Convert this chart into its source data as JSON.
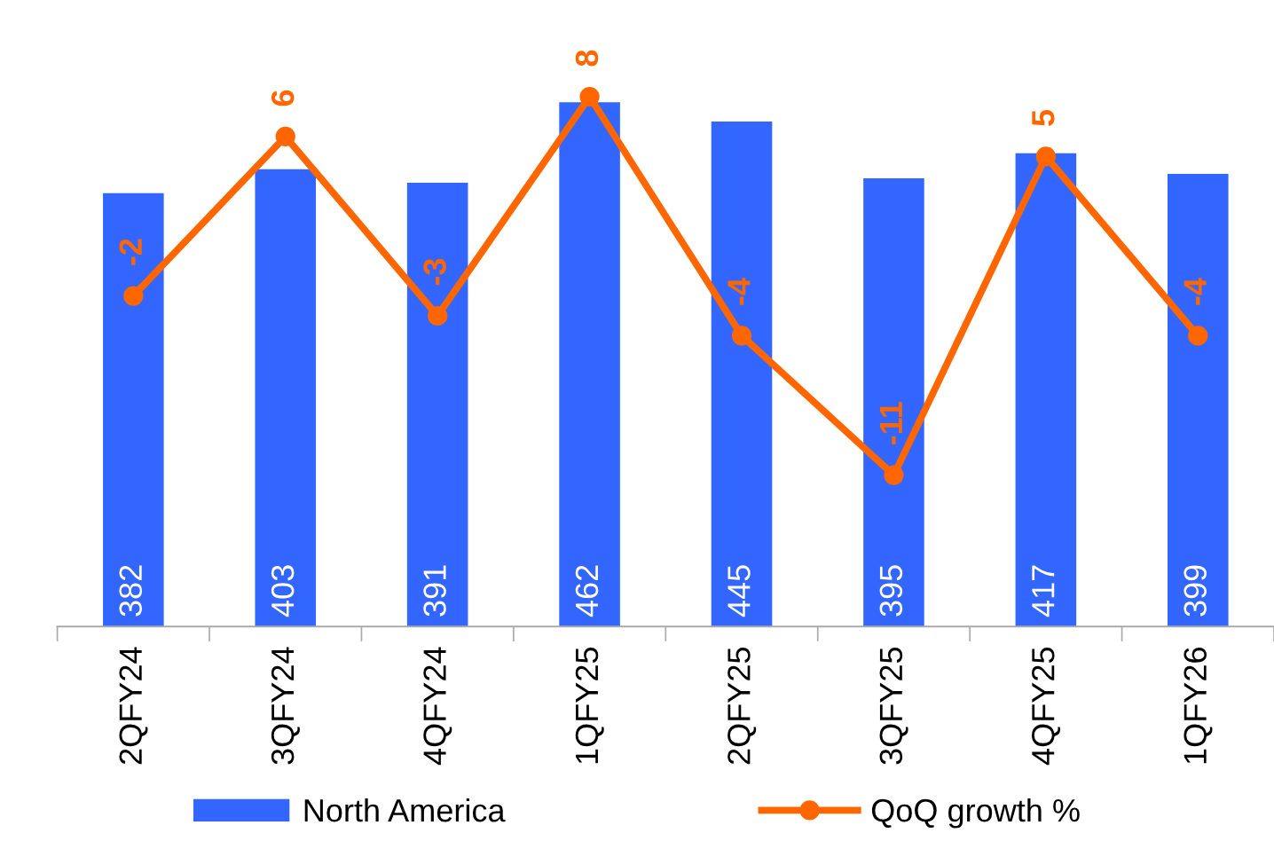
{
  "chart_data": {
    "type": "bar",
    "categories": [
      "2QFY24",
      "3QFY24",
      "4QFY24",
      "1QFY25",
      "2QFY25",
      "3QFY25",
      "4QFY25",
      "1QFY26"
    ],
    "series": [
      {
        "name": "North America",
        "color": "#3366ff",
        "values": [
          382,
          403,
          391,
          462,
          445,
          395,
          417,
          399
        ]
      },
      {
        "name": "QoQ growth %",
        "type": "line",
        "axis": "y2",
        "color": "#ff6600",
        "marker": "circle",
        "values": [
          -2,
          6,
          -3,
          8,
          -4,
          -11,
          5,
          -4
        ]
      }
    ],
    "data_labels": true,
    "legend": "bottom",
    "grid": false,
    "tick_labels": "x"
  }
}
